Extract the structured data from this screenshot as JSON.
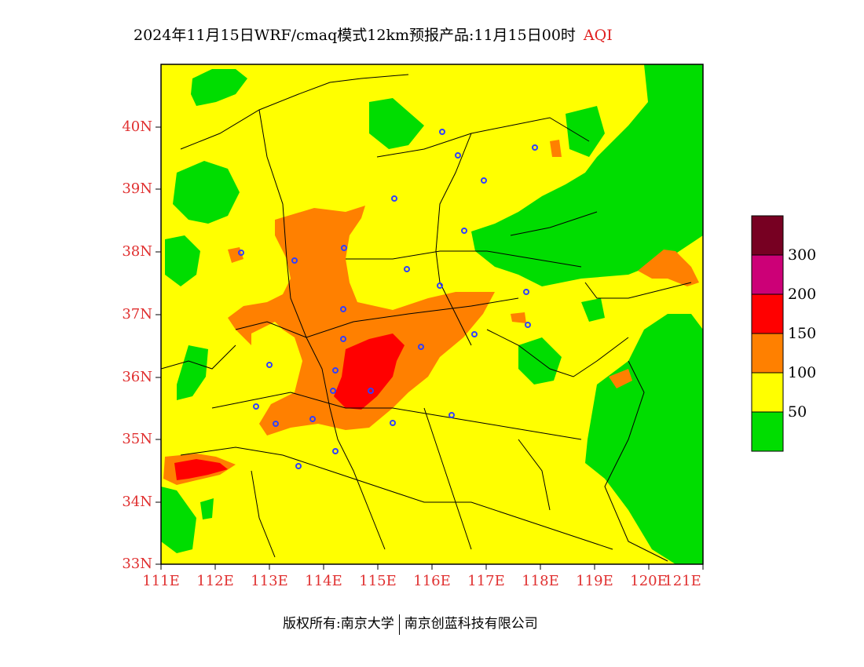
{
  "title": {
    "main": "2024年11月15日WRF/cmaq模式12km预报产品:11月15日00时",
    "product": "AQI"
  },
  "axes": {
    "lat_ticks": [
      "40N",
      "39N",
      "38N",
      "37N",
      "36N",
      "35N",
      "34N",
      "33N"
    ],
    "lon_ticks": [
      "111E",
      "112E",
      "113E",
      "114E",
      "115E",
      "116E",
      "117E",
      "118E",
      "119E",
      "120E",
      "121E"
    ]
  },
  "legend": {
    "labels": [
      "300",
      "200",
      "150",
      "100",
      "50"
    ],
    "colors": {
      "c0_50": "#00dd00",
      "c50_100": "#ffff00",
      "c100_150": "#ff8000",
      "c150_200": "#ff0000",
      "c200_300": "#cc0077",
      "c300_plus": "#770022"
    }
  },
  "footer": {
    "left": "版权所有:南京大学",
    "right": "南京创蓝科技有限公司"
  }
}
